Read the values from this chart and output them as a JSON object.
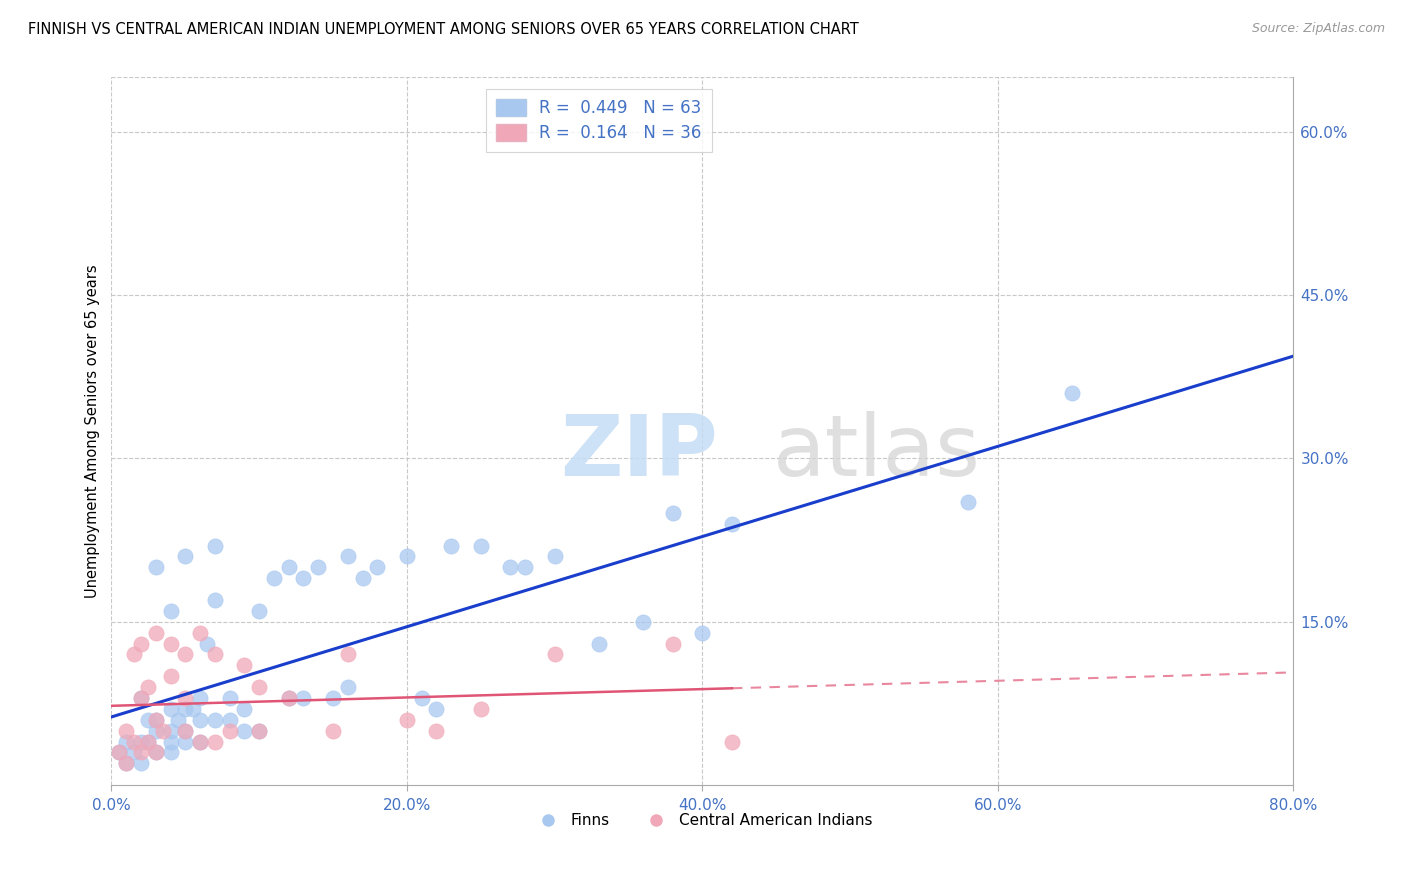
{
  "title": "FINNISH VS CENTRAL AMERICAN INDIAN UNEMPLOYMENT AMONG SENIORS OVER 65 YEARS CORRELATION CHART",
  "source": "Source: ZipAtlas.com",
  "ylabel": "Unemployment Among Seniors over 65 years",
  "finn_R": "0.449",
  "finn_N": "63",
  "cai_R": "0.164",
  "cai_N": "36",
  "finn_color": "#a8c8f0",
  "cai_color": "#f0a8b8",
  "finn_line_color": "#1a3ecc",
  "cai_line_color": "#e05575",
  "xlim": [
    0.0,
    0.8
  ],
  "ylim": [
    0.0,
    0.65
  ],
  "xticks": [
    0.0,
    0.2,
    0.4,
    0.6,
    0.8
  ],
  "yticks_right": [
    0.15,
    0.3,
    0.45,
    0.6
  ],
  "ytick_labels_right": [
    "15.0%",
    "30.0%",
    "45.0%",
    "60.0%"
  ],
  "xtick_labels": [
    "0.0%",
    "20.0%",
    "40.0%",
    "60.0%",
    "80.0%"
  ],
  "background_color": "#ffffff",
  "finn_scatter_x": [
    0.005,
    0.01,
    0.01,
    0.015,
    0.02,
    0.02,
    0.02,
    0.025,
    0.025,
    0.03,
    0.03,
    0.03,
    0.03,
    0.04,
    0.04,
    0.04,
    0.04,
    0.04,
    0.045,
    0.05,
    0.05,
    0.05,
    0.05,
    0.055,
    0.06,
    0.06,
    0.06,
    0.065,
    0.07,
    0.07,
    0.07,
    0.08,
    0.08,
    0.09,
    0.09,
    0.1,
    0.1,
    0.11,
    0.12,
    0.12,
    0.13,
    0.13,
    0.14,
    0.15,
    0.16,
    0.16,
    0.17,
    0.18,
    0.2,
    0.21,
    0.22,
    0.23,
    0.25,
    0.27,
    0.28,
    0.3,
    0.33,
    0.36,
    0.38,
    0.4,
    0.42,
    0.58,
    0.65
  ],
  "finn_scatter_y": [
    0.03,
    0.02,
    0.04,
    0.03,
    0.02,
    0.04,
    0.08,
    0.04,
    0.06,
    0.03,
    0.05,
    0.06,
    0.2,
    0.03,
    0.04,
    0.05,
    0.07,
    0.16,
    0.06,
    0.04,
    0.05,
    0.07,
    0.21,
    0.07,
    0.04,
    0.06,
    0.08,
    0.13,
    0.06,
    0.17,
    0.22,
    0.06,
    0.08,
    0.05,
    0.07,
    0.05,
    0.16,
    0.19,
    0.08,
    0.2,
    0.08,
    0.19,
    0.2,
    0.08,
    0.09,
    0.21,
    0.19,
    0.2,
    0.21,
    0.08,
    0.07,
    0.22,
    0.22,
    0.2,
    0.2,
    0.21,
    0.13,
    0.15,
    0.25,
    0.14,
    0.24,
    0.26,
    0.36
  ],
  "cai_scatter_x": [
    0.005,
    0.01,
    0.01,
    0.015,
    0.015,
    0.02,
    0.02,
    0.02,
    0.025,
    0.025,
    0.03,
    0.03,
    0.03,
    0.035,
    0.04,
    0.04,
    0.05,
    0.05,
    0.05,
    0.06,
    0.06,
    0.07,
    0.07,
    0.08,
    0.09,
    0.1,
    0.1,
    0.12,
    0.15,
    0.16,
    0.2,
    0.22,
    0.25,
    0.3,
    0.38,
    0.42
  ],
  "cai_scatter_y": [
    0.03,
    0.02,
    0.05,
    0.04,
    0.12,
    0.03,
    0.08,
    0.13,
    0.04,
    0.09,
    0.03,
    0.06,
    0.14,
    0.05,
    0.1,
    0.13,
    0.05,
    0.08,
    0.12,
    0.04,
    0.14,
    0.04,
    0.12,
    0.05,
    0.11,
    0.05,
    0.09,
    0.08,
    0.05,
    0.12,
    0.06,
    0.05,
    0.07,
    0.12,
    0.13,
    0.04
  ]
}
